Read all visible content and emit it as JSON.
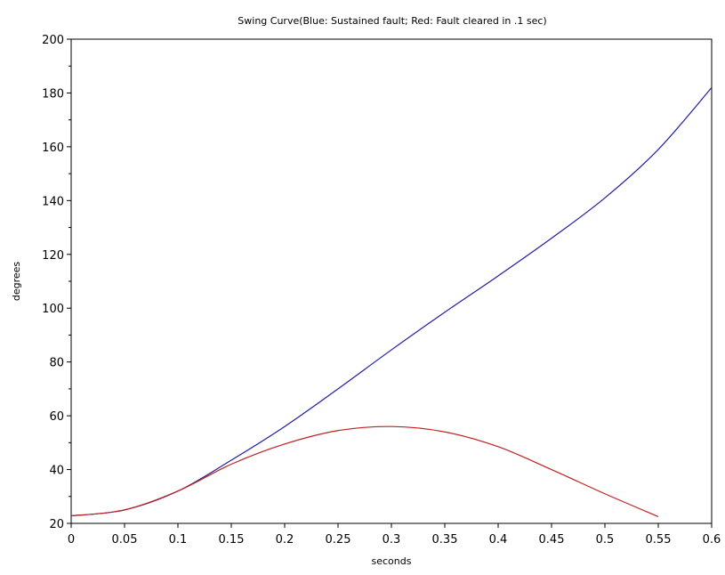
{
  "chart_data": {
    "type": "line",
    "title": "Swing Curve(Blue: Sustained fault; Red: Fault cleared in .1 sec)",
    "xlabel": "seconds",
    "ylabel": "degrees",
    "xlim": [
      0,
      0.6
    ],
    "ylim": [
      20,
      200
    ],
    "x_ticks": [
      "0",
      "0.05",
      "0.1",
      "0.15",
      "0.2",
      "0.25",
      "0.3",
      "0.35",
      "0.4",
      "0.45",
      "0.5",
      "0.55",
      "0.6"
    ],
    "y_ticks": [
      "20",
      "40",
      "60",
      "80",
      "100",
      "120",
      "140",
      "160",
      "180",
      "200"
    ],
    "grid": false,
    "series": [
      {
        "color": "#1f1fa0",
        "x": [
          0,
          0.05,
          0.1,
          0.15,
          0.2,
          0.25,
          0.3,
          0.35,
          0.4,
          0.45,
          0.5,
          0.55,
          0.6
        ],
        "y": [
          22.8,
          25.0,
          32.0,
          43.5,
          56.0,
          70.0,
          84.5,
          98.5,
          112.0,
          126.0,
          141.0,
          159.0,
          182.0
        ]
      },
      {
        "color": "#c02020",
        "x": [
          0,
          0.05,
          0.1,
          0.15,
          0.2,
          0.25,
          0.3,
          0.35,
          0.4,
          0.45,
          0.5,
          0.55
        ],
        "y": [
          22.8,
          25.0,
          32.0,
          42.0,
          49.5,
          54.5,
          56.0,
          54.0,
          48.5,
          40.0,
          31.0,
          22.5
        ]
      }
    ]
  }
}
